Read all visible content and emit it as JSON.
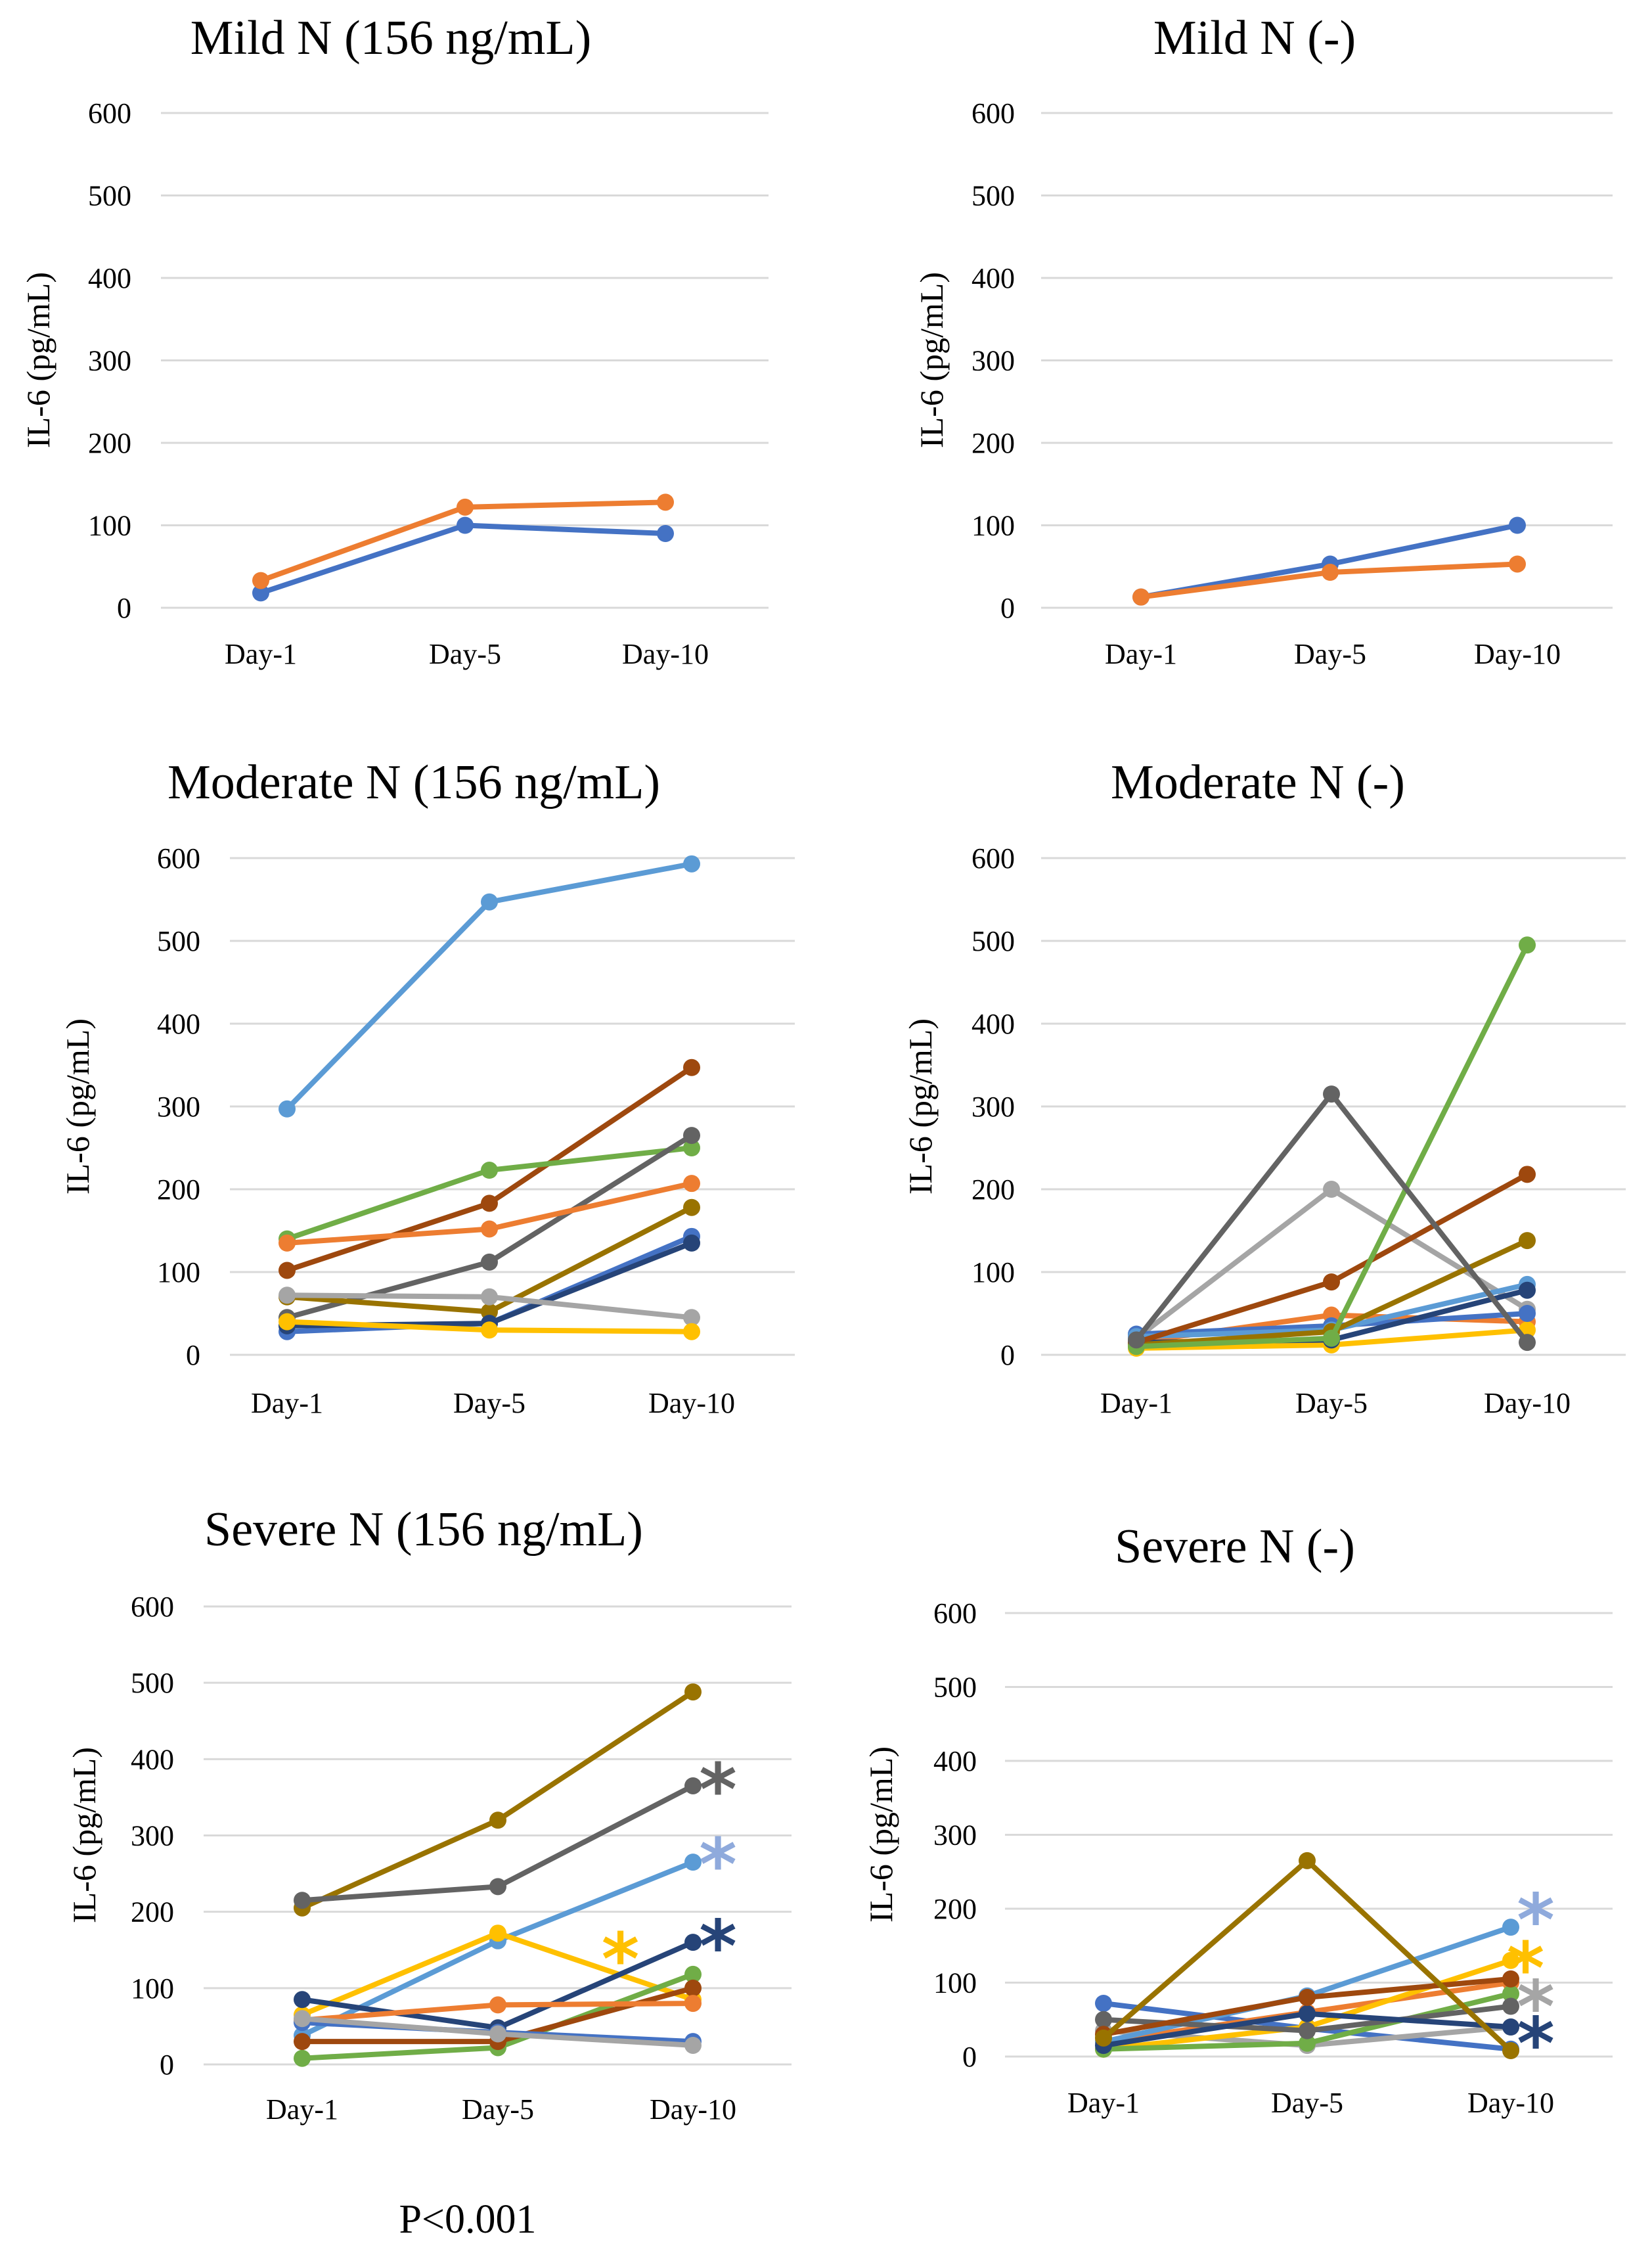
{
  "colors": {
    "blue": "#4472c4",
    "orange": "#ed7d31",
    "gray": "#a5a5a5",
    "yellow": "#ffc000",
    "lightblue": "#5b9bd5",
    "green": "#70ad47",
    "darkblue": "#264478",
    "brown": "#9e480e",
    "darkgray": "#636363",
    "olive": "#997300",
    "periwinkle": "#8faadc"
  },
  "footnote": "P<0.001",
  "chart_data": [
    {
      "type": "line",
      "title": "Mild N (156 ng/mL)",
      "ylabel": "IL-6 (pg/mL)",
      "ylim": [
        0,
        600
      ],
      "yticks": [
        0,
        100,
        200,
        300,
        400,
        500,
        600
      ],
      "categories": [
        "Day-1",
        "Day-5",
        "Day-10"
      ],
      "series": [
        {
          "color": "blue",
          "values": [
            18,
            100,
            90
          ]
        },
        {
          "color": "orange",
          "values": [
            33,
            122,
            128
          ]
        }
      ],
      "annotations": []
    },
    {
      "type": "line",
      "title": "Mild N (-)",
      "ylabel": "IL-6 (pg/mL)",
      "ylim": [
        0,
        600
      ],
      "yticks": [
        0,
        100,
        200,
        300,
        400,
        500,
        600
      ],
      "categories": [
        "Day-1",
        "Day-5",
        "Day-10"
      ],
      "series": [
        {
          "color": "blue",
          "values": [
            13,
            53,
            100
          ]
        },
        {
          "color": "orange",
          "values": [
            13,
            43,
            53
          ]
        }
      ],
      "annotations": []
    },
    {
      "type": "line",
      "title": "Moderate N (156 ng/mL)",
      "ylabel": "IL-6 (pg/mL)",
      "ylim": [
        0,
        600
      ],
      "yticks": [
        0,
        100,
        200,
        300,
        400,
        500,
        600
      ],
      "categories": [
        "Day-1",
        "Day-5",
        "Day-10"
      ],
      "series": [
        {
          "color": "lightblue",
          "values": [
            297,
            547,
            593
          ]
        },
        {
          "color": "brown",
          "values": [
            102,
            183,
            347
          ]
        },
        {
          "color": "green",
          "values": [
            140,
            223,
            250
          ]
        },
        {
          "color": "darkgray",
          "values": [
            45,
            112,
            265
          ]
        },
        {
          "color": "orange",
          "values": [
            135,
            152,
            207
          ]
        },
        {
          "color": "olive",
          "values": [
            70,
            52,
            178
          ]
        },
        {
          "color": "blue",
          "values": [
            28,
            38,
            143
          ]
        },
        {
          "color": "darkblue",
          "values": [
            35,
            38,
            135
          ]
        },
        {
          "color": "gray",
          "values": [
            72,
            70,
            45
          ]
        },
        {
          "color": "yellow",
          "values": [
            40,
            30,
            28
          ]
        }
      ],
      "annotations": []
    },
    {
      "type": "line",
      "title": "Moderate N (-)",
      "ylabel": "IL-6 (pg/mL)",
      "ylim": [
        0,
        600
      ],
      "yticks": [
        0,
        100,
        200,
        300,
        400,
        500,
        600
      ],
      "categories": [
        "Day-1",
        "Day-5",
        "Day-10"
      ],
      "series": [
        {
          "color": "gray",
          "values": [
            20,
            200,
            55
          ]
        },
        {
          "color": "orange",
          "values": [
            15,
            48,
            40
          ]
        },
        {
          "color": "yellow",
          "values": [
            8,
            12,
            30
          ]
        },
        {
          "color": "blue",
          "values": [
            25,
            35,
            50
          ]
        },
        {
          "color": "lightblue",
          "values": [
            22,
            30,
            85
          ]
        },
        {
          "color": "darkblue",
          "values": [
            15,
            18,
            78
          ]
        },
        {
          "color": "olive",
          "values": [
            12,
            28,
            138
          ]
        },
        {
          "color": "brown",
          "values": [
            15,
            88,
            218
          ]
        },
        {
          "color": "green",
          "values": [
            10,
            20,
            495
          ]
        },
        {
          "color": "darkgray",
          "values": [
            18,
            315,
            15
          ]
        }
      ],
      "annotations": []
    },
    {
      "type": "line",
      "title": "Severe N (156 ng/mL)",
      "ylabel": "IL-6 (pg/mL)",
      "ylim": [
        0,
        600
      ],
      "yticks": [
        0,
        100,
        200,
        300,
        400,
        500,
        600
      ],
      "categories": [
        "Day-1",
        "Day-5",
        "Day-10"
      ],
      "series": [
        {
          "color": "olive",
          "values": [
            205,
            320,
            488
          ]
        },
        {
          "color": "darkgray",
          "values": [
            215,
            233,
            365
          ]
        },
        {
          "color": "lightblue",
          "values": [
            38,
            162,
            265
          ]
        },
        {
          "color": "yellow",
          "values": [
            65,
            172,
            85
          ]
        },
        {
          "color": "darkblue",
          "values": [
            85,
            48,
            160
          ]
        },
        {
          "color": "green",
          "values": [
            8,
            22,
            118
          ]
        },
        {
          "color": "brown",
          "values": [
            30,
            30,
            100
          ]
        },
        {
          "color": "orange",
          "values": [
            58,
            78,
            80
          ]
        },
        {
          "color": "blue",
          "values": [
            55,
            42,
            30
          ]
        },
        {
          "color": "gray",
          "values": [
            60,
            40,
            25
          ]
        }
      ],
      "annotations": [
        {
          "text": "*",
          "color": "darkgray",
          "category": 2,
          "y": 370
        },
        {
          "text": "*",
          "color": "periwinkle",
          "category": 2,
          "y": 272
        },
        {
          "text": "*",
          "color": "yellow",
          "category": 1.5,
          "y": 148
        },
        {
          "text": "*",
          "color": "darkblue",
          "category": 2,
          "y": 165
        }
      ]
    },
    {
      "type": "line",
      "title": "Severe N (-)",
      "ylabel": "IL-6 (pg/mL)",
      "ylim": [
        0,
        600
      ],
      "yticks": [
        0,
        100,
        200,
        300,
        400,
        500,
        600
      ],
      "categories": [
        "Day-1",
        "Day-5",
        "Day-10"
      ],
      "series": [
        {
          "color": "blue",
          "values": [
            72,
            38,
            10
          ]
        },
        {
          "color": "gray",
          "values": [
            35,
            15,
            40
          ]
        },
        {
          "color": "orange",
          "values": [
            20,
            60,
            100
          ]
        },
        {
          "color": "yellow",
          "values": [
            10,
            40,
            130
          ]
        },
        {
          "color": "green",
          "values": [
            10,
            18,
            85
          ]
        },
        {
          "color": "lightblue",
          "values": [
            20,
            82,
            175
          ]
        },
        {
          "color": "darkgray",
          "values": [
            50,
            35,
            68
          ]
        },
        {
          "color": "darkblue",
          "values": [
            15,
            58,
            40
          ]
        },
        {
          "color": "brown",
          "values": [
            30,
            80,
            105
          ]
        },
        {
          "color": "olive",
          "values": [
            25,
            265,
            8
          ]
        }
      ],
      "annotations": [
        {
          "text": "*",
          "color": "periwinkle",
          "category": 2,
          "y": 195
        },
        {
          "text": "*",
          "color": "yellow",
          "category": 1.95,
          "y": 130
        },
        {
          "text": "*",
          "color": "gray",
          "category": 2,
          "y": 78
        },
        {
          "text": "*",
          "color": "darkblue",
          "category": 2,
          "y": 28
        }
      ]
    }
  ]
}
